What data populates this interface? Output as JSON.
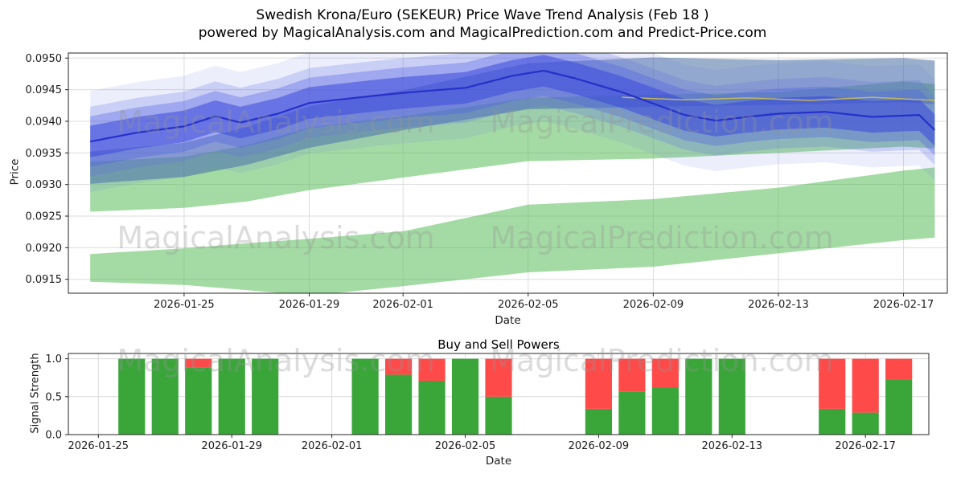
{
  "title": {
    "line1": "Swedish Krona/Euro (SEKEUR) Price Wave Trend Analysis (Feb 18 )",
    "line2": "powered by MagicalAnalysis.com and MagicalPrediction.com and Predict-Price.com"
  },
  "watermarks": {
    "left": "MagicalAnalysis.com",
    "right": "MagicalPrediction.com"
  },
  "colors": {
    "grid": "#dcdcdc",
    "spine": "#262626",
    "text": "#1a1a1a",
    "watermark": "rgba(150,150,150,0.33)"
  },
  "chart_data": [
    {
      "type": "area",
      "name": "price-wave-trend",
      "xlabel": "Date",
      "ylabel": "Price",
      "xlim": [
        -0.7,
        27.4
      ],
      "ylim": [
        0.09128,
        0.09508
      ],
      "x_tick_days": [
        3,
        7,
        10,
        14,
        18,
        22,
        26
      ],
      "x_tick_labels": [
        "2026-01-25",
        "2026-01-29",
        "2026-02-01",
        "2026-02-05",
        "2026-02-09",
        "2026-02-13",
        "2026-02-17"
      ],
      "y_ticks": [
        0.0915,
        0.092,
        0.0925,
        0.093,
        0.0935,
        0.094,
        0.0945,
        0.095
      ],
      "y_tick_labels": [
        "0.0915",
        "0.0920",
        "0.0925",
        "0.0930",
        "0.0935",
        "0.0940",
        "0.0945",
        "0.0950"
      ],
      "bands": [
        {
          "name": "lower-support-band",
          "color": "rgba(90,190,90,0.55)",
          "x": [
            0,
            3,
            5,
            7,
            10,
            14,
            18,
            22,
            26,
            27
          ],
          "lower": [
            0.09146,
            0.09141,
            0.09133,
            0.09124,
            0.09139,
            0.09161,
            0.0917,
            0.09191,
            0.09212,
            0.09216
          ],
          "upper": [
            0.0919,
            0.09199,
            0.09207,
            0.09214,
            0.09226,
            0.09268,
            0.09277,
            0.09295,
            0.09322,
            0.09327
          ]
        },
        {
          "name": "mid-support-band",
          "color": "rgba(90,190,90,0.55)",
          "x": [
            0,
            3,
            5,
            7,
            10,
            14,
            18,
            22,
            26,
            27
          ],
          "lower": [
            0.09257,
            0.09263,
            0.09273,
            0.09291,
            0.09311,
            0.09337,
            0.09341,
            0.0935,
            0.0936,
            0.09357
          ],
          "upper": [
            0.09336,
            0.09344,
            0.09362,
            0.0939,
            0.09408,
            0.09437,
            0.09442,
            0.09446,
            0.09463,
            0.09459
          ]
        },
        {
          "name": "trend-channel-band",
          "color": "rgba(70,110,160,0.55)",
          "x": [
            0,
            3,
            5,
            7,
            10,
            14,
            18,
            22,
            26,
            27
          ],
          "lower": [
            0.09301,
            0.09312,
            0.09331,
            0.09358,
            0.09386,
            0.09419,
            0.09423,
            0.09426,
            0.0943,
            0.09427
          ],
          "upper": [
            0.09352,
            0.09366,
            0.09391,
            0.09424,
            0.09449,
            0.09492,
            0.09501,
            0.09497,
            0.095,
            0.09496
          ]
        }
      ],
      "wave_line": {
        "name": "price-wave-line",
        "color": "#2531c8",
        "x": [
          0,
          1.5,
          3,
          4,
          4.8,
          6,
          7,
          9,
          10,
          12,
          13.5,
          14.5,
          15.5,
          17,
          18,
          19,
          20,
          21,
          22,
          23.5,
          25,
          26.5,
          27
        ],
        "y": [
          0.09368,
          0.09382,
          0.09392,
          0.09408,
          0.09398,
          0.09412,
          0.09429,
          0.0944,
          0.09445,
          0.09453,
          0.09472,
          0.0948,
          0.09468,
          0.09446,
          0.09428,
          0.0941,
          0.09401,
          0.09407,
          0.09412,
          0.09415,
          0.09407,
          0.0941,
          0.09386
        ]
      },
      "wave_halos": [
        {
          "offset": 0.0008,
          "color": "rgba(110,125,235,0.13)"
        },
        {
          "offset": 0.00055,
          "color": "rgba(95,110,232,0.24)"
        },
        {
          "offset": 0.0004,
          "color": "rgba(80,95,228,0.34)"
        },
        {
          "offset": 0.00025,
          "color": "rgba(58,72,218,0.55)"
        }
      ],
      "aux_line": {
        "name": "secondary-trend-line",
        "color": "#cdbf52",
        "x": [
          17,
          19,
          21,
          23,
          25,
          27
        ],
        "y": [
          0.09438,
          0.09434,
          0.09437,
          0.09433,
          0.09438,
          0.09433
        ]
      }
    },
    {
      "type": "bar",
      "name": "buy-sell-powers",
      "title": "Buy and Sell Powers",
      "xlabel": "Date",
      "ylabel": "Signal Strength",
      "xlim": [
        -0.9,
        24.9
      ],
      "ylim": [
        0,
        1.07
      ],
      "x_tick_days": [
        0,
        4,
        7,
        11,
        15,
        19,
        23
      ],
      "x_tick_labels": [
        "2026-01-25",
        "2026-01-29",
        "2026-02-01",
        "2026-02-05",
        "2026-02-09",
        "2026-02-13",
        "2026-02-17"
      ],
      "y_ticks": [
        0.0,
        0.5,
        1.0
      ],
      "y_tick_labels": [
        "0.0",
        "0.5",
        "1.0"
      ],
      "bar_width": 0.8,
      "dates": [
        "2026-01-26",
        "2026-01-27",
        "2026-01-28",
        "2026-01-29",
        "2026-01-30",
        "2026-02-02",
        "2026-02-03",
        "2026-02-04",
        "2026-02-05",
        "2026-02-06",
        "2026-02-09",
        "2026-02-10",
        "2026-02-11",
        "2026-02-12",
        "2026-02-13",
        "2026-02-16",
        "2026-02-17",
        "2026-02-18"
      ],
      "day_offsets": [
        1,
        2,
        3,
        4,
        5,
        8,
        9,
        10,
        11,
        12,
        15,
        16,
        17,
        18,
        19,
        22,
        23,
        24
      ],
      "series": [
        {
          "name": "Buy",
          "color": "#3aa63a",
          "values": [
            1.0,
            1.0,
            0.88,
            1.0,
            1.0,
            1.0,
            0.79,
            0.71,
            1.0,
            0.5,
            0.34,
            0.57,
            0.62,
            1.0,
            1.0,
            0.34,
            0.29,
            0.73
          ]
        },
        {
          "name": "Sell",
          "color": "#ff4a4a",
          "values": [
            0.0,
            0.0,
            0.12,
            0.0,
            0.0,
            0.0,
            0.21,
            0.29,
            0.0,
            0.5,
            0.66,
            0.43,
            0.38,
            0.0,
            0.0,
            0.66,
            0.71,
            0.27
          ]
        }
      ]
    }
  ]
}
